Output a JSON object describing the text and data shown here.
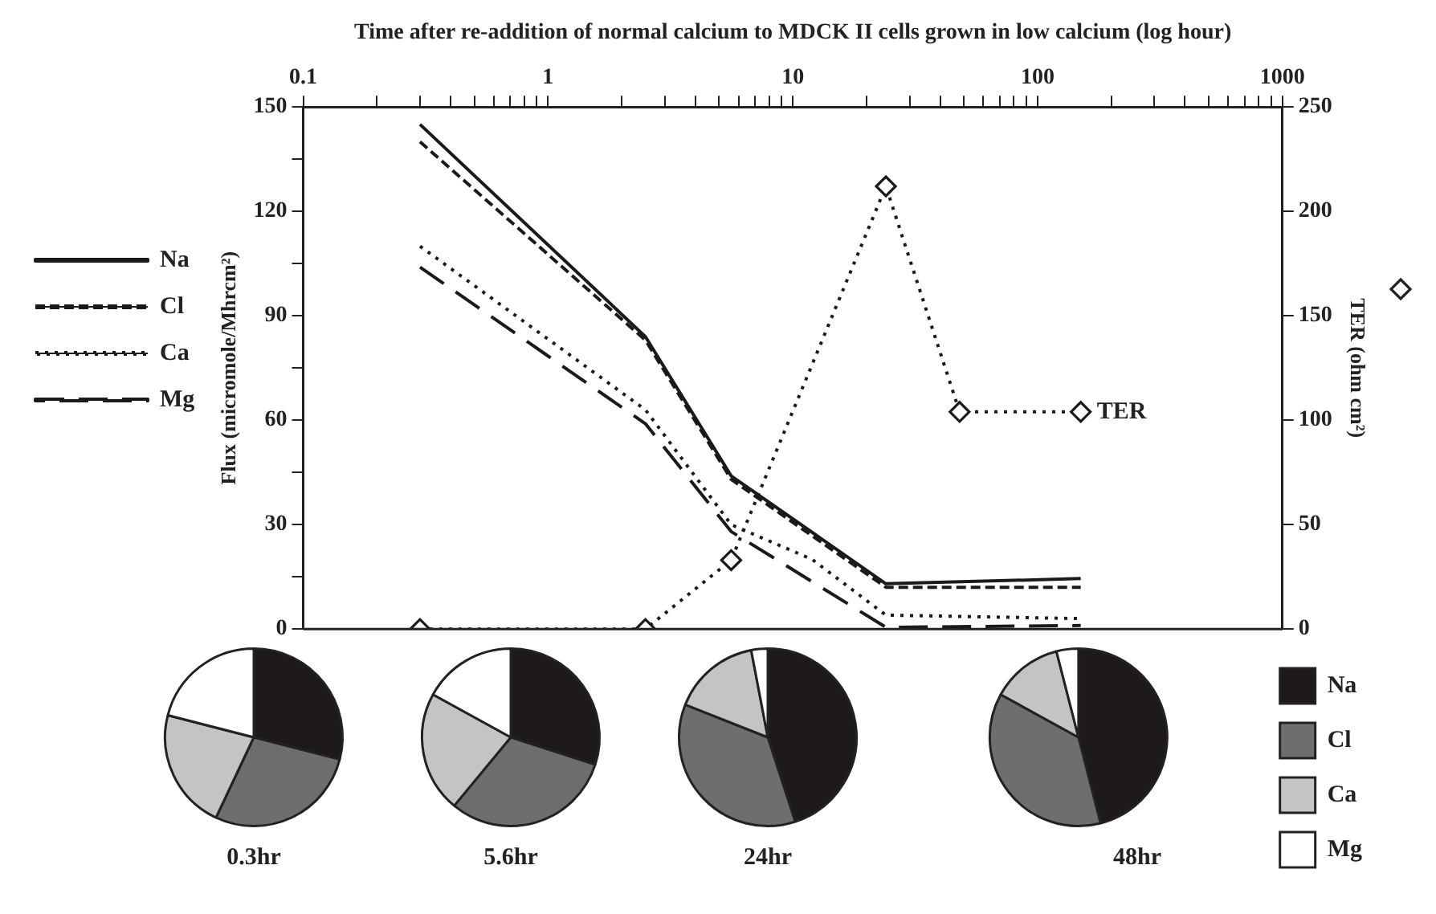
{
  "chart_data": [
    {
      "type": "line",
      "xlabel": "Time after re-addition of normal calcium to MDCK II cells grown in low calcium (log hour)",
      "ylabel": "Flux (micromole/Mhrcm²)",
      "y2label": "TER (ohm cm²)",
      "log": "x",
      "xlim": [
        0.1,
        1000
      ],
      "xticks": [
        0.1,
        {
          "value": 0.2,
          "label": null
        },
        {
          "value": 0.3,
          "label": null
        },
        {
          "value": 0.4,
          "label": null
        },
        {
          "value": 0.5,
          "label": null
        },
        {
          "value": 0.6,
          "label": null
        },
        {
          "value": 0.7,
          "label": null
        },
        {
          "value": 0.8,
          "label": null
        },
        {
          "value": 0.9,
          "label": null
        },
        1,
        {
          "value": 2,
          "label": null
        },
        {
          "value": 3,
          "label": null
        },
        {
          "value": 4,
          "label": null
        },
        {
          "value": 5,
          "label": null
        },
        {
          "value": 6,
          "label": null
        },
        {
          "value": 7,
          "label": null
        },
        {
          "value": 8,
          "label": null
        },
        {
          "value": 9,
          "label": null
        },
        10,
        {
          "value": 20,
          "label": null
        },
        {
          "value": 30,
          "label": null
        },
        {
          "value": 40,
          "label": null
        },
        {
          "value": 50,
          "label": null
        },
        {
          "value": 60,
          "label": null
        },
        {
          "value": 70,
          "label": null
        },
        {
          "value": 80,
          "label": null
        },
        {
          "value": 90,
          "label": null
        },
        100,
        {
          "value": 200,
          "label": null
        },
        {
          "value": 300,
          "label": null
        },
        {
          "value": 400,
          "label": null
        },
        {
          "value": 500,
          "label": null
        },
        {
          "value": 600,
          "label": null
        },
        {
          "value": 700,
          "label": null
        },
        {
          "value": 800,
          "label": null
        },
        {
          "value": 900,
          "label": null
        },
        1000
      ],
      "ylim": [
        0,
        150
      ],
      "yticks": [
        0,
        {
          "value": 15,
          "label": null
        },
        30,
        {
          "value": 45,
          "label": null
        },
        60,
        {
          "value": 75,
          "label": null
        },
        90,
        {
          "value": 105,
          "label": null
        },
        120,
        {
          "value": 135,
          "label": null
        },
        150
      ],
      "y2lim": [
        0,
        250
      ],
      "y2ticks": [
        0,
        50,
        100,
        150,
        200,
        250
      ],
      "grid": false,
      "legend": "left",
      "series": [
        {
          "name": "Na",
          "color": "#1a1a1a",
          "line_style": "solid",
          "marker": "none",
          "x": [
            0.3,
            2.5,
            5.6,
            24,
            150
          ],
          "values": [
            145,
            84,
            44,
            13,
            14.5
          ]
        },
        {
          "name": "Cl",
          "color": "#1a1a1a",
          "line_style": "dashed",
          "marker": "none",
          "x": [
            0.3,
            2.5,
            5.6,
            24,
            150
          ],
          "values": [
            140,
            83,
            43,
            12,
            12
          ]
        },
        {
          "name": "Ca",
          "color": "#1a1a1a",
          "line_style": "dotted",
          "marker": "none",
          "x": [
            0.3,
            2.5,
            5.6,
            12,
            24,
            150
          ],
          "values": [
            110,
            63,
            30,
            20,
            4,
            3
          ]
        },
        {
          "name": "Mg",
          "color": "#1a1a1a",
          "line_style": "dashed",
          "marker": "none",
          "x": [
            0.3,
            2.5,
            5.6,
            24,
            150
          ],
          "values": [
            104,
            59,
            28,
            0.5,
            1
          ]
        },
        {
          "name": "TER",
          "color": "#1a1a1a",
          "line_style": "dotted",
          "marker": "diamond",
          "axis": "y2",
          "x": [
            0.3,
            2.5,
            5.6,
            24,
            48,
            150
          ],
          "values": [
            0,
            0,
            33,
            212,
            104,
            104
          ]
        }
      ]
    },
    {
      "type": "pie",
      "title": "0.3hr",
      "categories": [
        null,
        null,
        null,
        null
      ],
      "values": [
        29,
        28,
        22,
        21
      ],
      "colors": [
        "#1e1a1b",
        "#6e6e6e",
        "#c4c4c4",
        "#ffffff"
      ],
      "legend": false
    },
    {
      "type": "pie",
      "title": "5.6hr",
      "categories": [
        null,
        null,
        null,
        null
      ],
      "values": [
        30,
        31,
        22,
        17
      ],
      "colors": [
        "#1e1a1b",
        "#6e6e6e",
        "#c4c4c4",
        "#ffffff"
      ],
      "legend": false
    },
    {
      "type": "pie",
      "title": "24hr",
      "categories": [
        null,
        null,
        null,
        null
      ],
      "values": [
        45,
        36,
        16,
        3
      ],
      "colors": [
        "#1e1a1b",
        "#6e6e6e",
        "#c4c4c4",
        "#ffffff"
      ],
      "legend": false
    },
    {
      "type": "pie",
      "title": "48hr",
      "categories": [
        "Na",
        "Cl",
        "Ca",
        "Mg"
      ],
      "values": [
        46,
        37,
        13,
        4
      ],
      "colors": [
        "#1e1a1b",
        "#6e6e6e",
        "#c4c4c4",
        "#ffffff"
      ],
      "legend": "right"
    }
  ]
}
